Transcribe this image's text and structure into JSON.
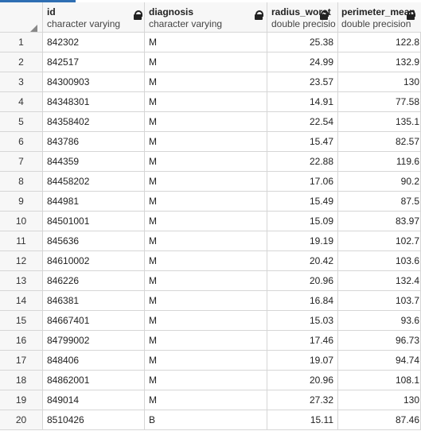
{
  "columns": [
    {
      "name": "id",
      "type": "character varying"
    },
    {
      "name": "diagnosis",
      "type": "character varying"
    },
    {
      "name": "radius_worst",
      "type": "double precisio"
    },
    {
      "name": "perimeter_mean",
      "type": "double precision"
    }
  ],
  "rows": [
    {
      "n": "1",
      "id": "842302",
      "diagnosis": "M",
      "radius_worst": "25.38",
      "perimeter_mean": "122.8"
    },
    {
      "n": "2",
      "id": "842517",
      "diagnosis": "M",
      "radius_worst": "24.99",
      "perimeter_mean": "132.9"
    },
    {
      "n": "3",
      "id": "84300903",
      "diagnosis": "M",
      "radius_worst": "23.57",
      "perimeter_mean": "130"
    },
    {
      "n": "4",
      "id": "84348301",
      "diagnosis": "M",
      "radius_worst": "14.91",
      "perimeter_mean": "77.58"
    },
    {
      "n": "5",
      "id": "84358402",
      "diagnosis": "M",
      "radius_worst": "22.54",
      "perimeter_mean": "135.1"
    },
    {
      "n": "6",
      "id": "843786",
      "diagnosis": "M",
      "radius_worst": "15.47",
      "perimeter_mean": "82.57"
    },
    {
      "n": "7",
      "id": "844359",
      "diagnosis": "M",
      "radius_worst": "22.88",
      "perimeter_mean": "119.6"
    },
    {
      "n": "8",
      "id": "84458202",
      "diagnosis": "M",
      "radius_worst": "17.06",
      "perimeter_mean": "90.2"
    },
    {
      "n": "9",
      "id": "844981",
      "diagnosis": "M",
      "radius_worst": "15.49",
      "perimeter_mean": "87.5"
    },
    {
      "n": "10",
      "id": "84501001",
      "diagnosis": "M",
      "radius_worst": "15.09",
      "perimeter_mean": "83.97"
    },
    {
      "n": "11",
      "id": "845636",
      "diagnosis": "M",
      "radius_worst": "19.19",
      "perimeter_mean": "102.7"
    },
    {
      "n": "12",
      "id": "84610002",
      "diagnosis": "M",
      "radius_worst": "20.42",
      "perimeter_mean": "103.6"
    },
    {
      "n": "13",
      "id": "846226",
      "diagnosis": "M",
      "radius_worst": "20.96",
      "perimeter_mean": "132.4"
    },
    {
      "n": "14",
      "id": "846381",
      "diagnosis": "M",
      "radius_worst": "16.84",
      "perimeter_mean": "103.7"
    },
    {
      "n": "15",
      "id": "84667401",
      "diagnosis": "M",
      "radius_worst": "15.03",
      "perimeter_mean": "93.6"
    },
    {
      "n": "16",
      "id": "84799002",
      "diagnosis": "M",
      "radius_worst": "17.46",
      "perimeter_mean": "96.73"
    },
    {
      "n": "17",
      "id": "848406",
      "diagnosis": "M",
      "radius_worst": "19.07",
      "perimeter_mean": "94.74"
    },
    {
      "n": "18",
      "id": "84862001",
      "diagnosis": "M",
      "radius_worst": "20.96",
      "perimeter_mean": "108.1"
    },
    {
      "n": "19",
      "id": "849014",
      "diagnosis": "M",
      "radius_worst": "27.32",
      "perimeter_mean": "130"
    },
    {
      "n": "20",
      "id": "8510426",
      "diagnosis": "B",
      "radius_worst": "15.11",
      "perimeter_mean": "87.46"
    }
  ],
  "icons": {
    "locked": "lock-icon",
    "corner": "select-all-icon"
  },
  "colors": {
    "accent": "#2f6fb3",
    "grid_line": "#d6d6d6",
    "header_bg": "#f7f7f7"
  }
}
